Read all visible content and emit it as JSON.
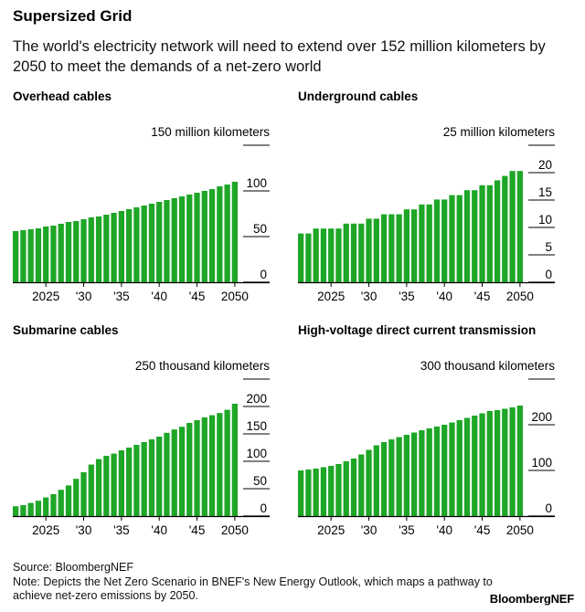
{
  "header": {
    "title": "Supersized Grid",
    "subtitle": "The world's electricity network will need to extend over 152 million kilometers by 2050 to meet the demands of a net-zero world"
  },
  "footer": {
    "source": "Source: BloombergNEF",
    "note": "Note: Depicts the Net Zero Scenario in BNEF's New Energy Outlook, which maps a pathway to achieve net-zero emissions by 2050.",
    "logo": "BloombergNEF"
  },
  "colors": {
    "bar": "#1ea626",
    "axis": "#000000"
  },
  "chart_data": [
    {
      "type": "bar",
      "title": "Overhead cables",
      "unit_label": "150 million kilometers",
      "ylim": [
        0,
        150
      ],
      "yticks": [
        "0",
        "50",
        "100"
      ],
      "ytick_values": [
        0,
        50,
        100
      ],
      "years": [
        2021,
        2022,
        2023,
        2024,
        2025,
        2026,
        2027,
        2028,
        2029,
        2030,
        2031,
        2032,
        2033,
        2034,
        2035,
        2036,
        2037,
        2038,
        2039,
        2040,
        2041,
        2042,
        2043,
        2044,
        2045,
        2046,
        2047,
        2048,
        2049,
        2050
      ],
      "xticks": [
        "2025",
        "'30",
        "'35",
        "'40",
        "'45",
        "2050"
      ],
      "xtick_years": [
        2025,
        2030,
        2035,
        2040,
        2045,
        2050
      ],
      "values": [
        56,
        57,
        58,
        59,
        61,
        62,
        64,
        66,
        67,
        69,
        71,
        72,
        74,
        76,
        78,
        80,
        82,
        84,
        86,
        88,
        90,
        92,
        94,
        96,
        98,
        100,
        102,
        105,
        107,
        110
      ]
    },
    {
      "type": "bar",
      "title": "Underground cables",
      "unit_label": "25 million kilometers",
      "ylim": [
        0,
        25
      ],
      "yticks": [
        "0",
        "5",
        "10",
        "15",
        "20"
      ],
      "ytick_values": [
        0,
        5,
        10,
        15,
        20
      ],
      "years": [
        2021,
        2022,
        2023,
        2024,
        2025,
        2026,
        2027,
        2028,
        2029,
        2030,
        2031,
        2032,
        2033,
        2034,
        2035,
        2036,
        2037,
        2038,
        2039,
        2040,
        2041,
        2042,
        2043,
        2044,
        2045,
        2046,
        2047,
        2048,
        2049,
        2050
      ],
      "xticks": [
        "2025",
        "'30",
        "'35",
        "'40",
        "'45",
        "2050"
      ],
      "xtick_years": [
        2025,
        2030,
        2035,
        2040,
        2045,
        2050
      ],
      "values": [
        8.9,
        8.9,
        9.8,
        9.8,
        9.8,
        9.8,
        10.7,
        10.7,
        10.7,
        11.6,
        11.6,
        12.4,
        12.4,
        12.4,
        13.3,
        13.3,
        14.2,
        14.2,
        15.1,
        15.1,
        15.9,
        15.9,
        16.8,
        16.8,
        17.7,
        17.7,
        18.6,
        19.4,
        20.3,
        20.3
      ]
    },
    {
      "type": "bar",
      "title": "Submarine cables",
      "unit_label": "250 thousand kilometers",
      "ylim": [
        0,
        250
      ],
      "yticks": [
        "0",
        "50",
        "100",
        "150",
        "200"
      ],
      "ytick_values": [
        0,
        50,
        100,
        150,
        200
      ],
      "years": [
        2021,
        2022,
        2023,
        2024,
        2025,
        2026,
        2027,
        2028,
        2029,
        2030,
        2031,
        2032,
        2033,
        2034,
        2035,
        2036,
        2037,
        2038,
        2039,
        2040,
        2041,
        2042,
        2043,
        2044,
        2045,
        2046,
        2047,
        2048,
        2049,
        2050
      ],
      "xticks": [
        "2025",
        "'30",
        "'35",
        "'40",
        "'45",
        "2050"
      ],
      "xtick_years": [
        2025,
        2030,
        2035,
        2040,
        2045,
        2050
      ],
      "values": [
        18,
        20,
        24,
        28,
        34,
        40,
        48,
        56,
        68,
        80,
        94,
        104,
        110,
        114,
        120,
        125,
        130,
        135,
        140,
        145,
        152,
        158,
        163,
        170,
        175,
        180,
        184,
        188,
        194,
        205
      ]
    },
    {
      "type": "bar",
      "title": "High-voltage direct current transmission",
      "unit_label": "300 thousand kilometers",
      "ylim": [
        0,
        300
      ],
      "yticks": [
        "0",
        "100",
        "200"
      ],
      "ytick_values": [
        0,
        100,
        200
      ],
      "years": [
        2021,
        2022,
        2023,
        2024,
        2025,
        2026,
        2027,
        2028,
        2029,
        2030,
        2031,
        2032,
        2033,
        2034,
        2035,
        2036,
        2037,
        2038,
        2039,
        2040,
        2041,
        2042,
        2043,
        2044,
        2045,
        2046,
        2047,
        2048,
        2049,
        2050
      ],
      "xticks": [
        "2025",
        "'30",
        "'35",
        "'40",
        "'45",
        "2050"
      ],
      "xtick_years": [
        2025,
        2030,
        2035,
        2040,
        2045,
        2050
      ],
      "values": [
        100,
        102,
        104,
        107,
        110,
        114,
        120,
        126,
        135,
        145,
        155,
        162,
        168,
        173,
        178,
        183,
        188,
        192,
        196,
        200,
        205,
        210,
        215,
        220,
        225,
        230,
        232,
        235,
        238,
        242
      ]
    }
  ]
}
